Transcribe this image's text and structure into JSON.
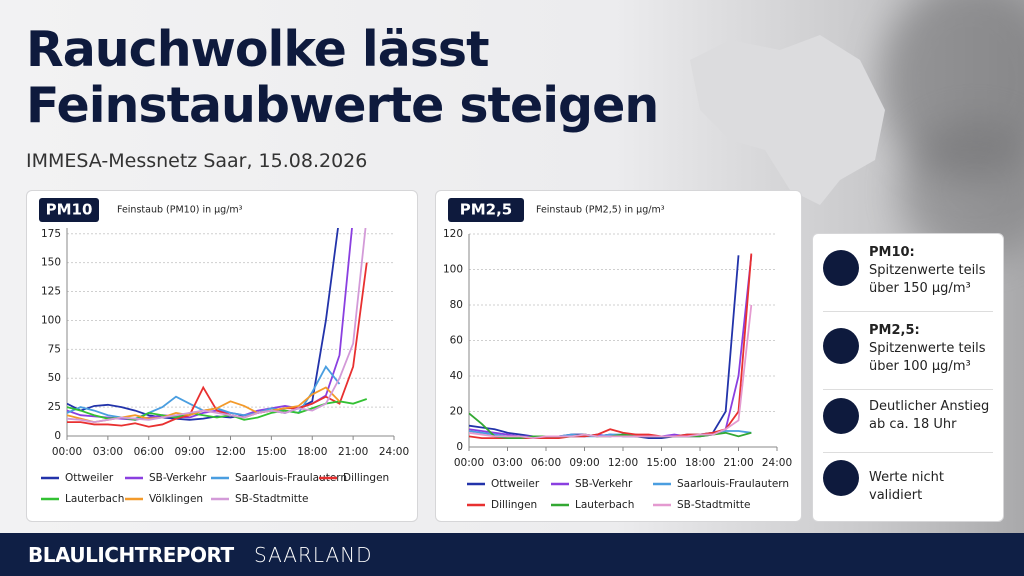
{
  "header": {
    "title_lines": [
      "Rauchwolke lässt",
      "Feinstaubwerte steigen"
    ],
    "subtitle": "IMMESA-Messnetz Saar, 15.08.2026"
  },
  "chart_data": [
    {
      "type": "line",
      "title": "PM10",
      "subtitle": "Feinstaub (PM10) in µg/m³",
      "x": [
        0,
        1,
        2,
        3,
        4,
        5,
        6,
        7,
        8,
        9,
        10,
        11,
        12,
        13,
        14,
        15,
        16,
        17,
        18,
        19,
        20,
        21,
        22
      ],
      "xlim": [
        0,
        24
      ],
      "xticks": [
        {
          "value": 0,
          "label": "00:00"
        },
        {
          "value": 3,
          "label": "03:00"
        },
        {
          "value": 6,
          "label": "06:00"
        },
        {
          "value": 9,
          "label": "09:00"
        },
        {
          "value": 12,
          "label": "12:00"
        },
        {
          "value": 15,
          "label": "15:00"
        },
        {
          "value": 18,
          "label": "18:00"
        },
        {
          "value": 21,
          "label": "21:00"
        },
        {
          "value": 24,
          "label": "24:00"
        }
      ],
      "ylim": [
        0,
        180
      ],
      "yticks": [
        0,
        25,
        50,
        75,
        100,
        125,
        150,
        175
      ],
      "grid": true,
      "series": [
        {
          "name": "Ottweiler",
          "color": "#2233aa",
          "values": [
            28,
            22,
            26,
            27,
            25,
            22,
            18,
            16,
            15,
            14,
            15,
            17,
            16,
            18,
            20,
            22,
            20,
            24,
            30,
            100,
            190,
            null,
            null
          ]
        },
        {
          "name": "SB-Verkehr",
          "color": "#8a3fe0",
          "values": [
            22,
            18,
            17,
            16,
            15,
            14,
            16,
            18,
            17,
            16,
            20,
            22,
            20,
            18,
            22,
            24,
            26,
            24,
            28,
            35,
            70,
            190,
            null
          ]
        },
        {
          "name": "Saarlouis-Fraulautern",
          "color": "#4a9ee0",
          "values": [
            20,
            25,
            22,
            18,
            16,
            15,
            20,
            25,
            34,
            28,
            22,
            24,
            20,
            18,
            20,
            24,
            22,
            20,
            38,
            60,
            45,
            null,
            null
          ]
        },
        {
          "name": "Dillingen",
          "color": "#e83030",
          "values": [
            12,
            12,
            10,
            10,
            9,
            11,
            8,
            10,
            15,
            18,
            42,
            22,
            18,
            16,
            20,
            22,
            24,
            24,
            28,
            34,
            28,
            60,
            150
          ]
        },
        {
          "name": "Lauterbach",
          "color": "#33c133",
          "values": [
            25,
            22,
            18,
            15,
            16,
            14,
            20,
            18,
            16,
            20,
            18,
            16,
            18,
            14,
            16,
            20,
            22,
            20,
            24,
            28,
            30,
            28,
            32
          ]
        },
        {
          "name": "Völklingen",
          "color": "#f39a2a",
          "values": [
            18,
            15,
            12,
            14,
            16,
            18,
            15,
            16,
            20,
            18,
            22,
            24,
            30,
            26,
            20,
            22,
            24,
            26,
            36,
            42,
            30,
            null,
            null
          ]
        },
        {
          "name": "SB-Stadtmitte",
          "color": "#d39ad8",
          "values": [
            15,
            14,
            12,
            14,
            16,
            15,
            14,
            16,
            18,
            20,
            22,
            20,
            18,
            16,
            20,
            22,
            20,
            24,
            22,
            28,
            50,
            80,
            190
          ]
        }
      ]
    },
    {
      "type": "line",
      "title": "PM2,5",
      "subtitle": "Feinstaub (PM2,5) in µg/m³",
      "x": [
        0,
        1,
        2,
        3,
        4,
        5,
        6,
        7,
        8,
        9,
        10,
        11,
        12,
        13,
        14,
        15,
        16,
        17,
        18,
        19,
        20,
        21,
        22
      ],
      "xlim": [
        0,
        24
      ],
      "xticks": [
        {
          "value": 0,
          "label": "00:00"
        },
        {
          "value": 3,
          "label": "03:00"
        },
        {
          "value": 6,
          "label": "06:00"
        },
        {
          "value": 9,
          "label": "09:00"
        },
        {
          "value": 12,
          "label": "12:00"
        },
        {
          "value": 15,
          "label": "15:00"
        },
        {
          "value": 18,
          "label": "18:00"
        },
        {
          "value": 21,
          "label": "21:00"
        },
        {
          "value": 24,
          "label": "24:00"
        }
      ],
      "ylim": [
        0,
        120
      ],
      "yticks": [
        0,
        20,
        40,
        60,
        80,
        100,
        120
      ],
      "grid": true,
      "series": [
        {
          "name": "Ottweiler",
          "color": "#2233aa",
          "values": [
            12,
            11,
            10,
            8,
            7,
            6,
            6,
            6,
            7,
            7,
            6,
            7,
            6,
            6,
            5,
            5,
            6,
            6,
            7,
            8,
            20,
            108,
            null
          ]
        },
        {
          "name": "SB-Verkehr",
          "color": "#8a3fe0",
          "values": [
            10,
            9,
            8,
            7,
            6,
            6,
            5,
            6,
            6,
            6,
            7,
            6,
            7,
            6,
            6,
            6,
            7,
            6,
            6,
            7,
            10,
            40,
            108
          ]
        },
        {
          "name": "Saarlouis-Fraulautern",
          "color": "#4a9ee0",
          "values": [
            9,
            8,
            7,
            6,
            6,
            5,
            6,
            6,
            7,
            6,
            6,
            7,
            7,
            7,
            6,
            6,
            6,
            7,
            7,
            8,
            9,
            9,
            8
          ]
        },
        {
          "name": "Dillingen",
          "color": "#e83030",
          "values": [
            6,
            5,
            5,
            5,
            5,
            5,
            5,
            5,
            6,
            6,
            7,
            10,
            8,
            7,
            7,
            6,
            6,
            7,
            7,
            8,
            10,
            20,
            109
          ]
        },
        {
          "name": "Lauterbach",
          "color": "#33a833",
          "values": [
            19,
            13,
            6,
            5,
            5,
            6,
            6,
            6,
            6,
            7,
            6,
            6,
            7,
            6,
            6,
            6,
            6,
            6,
            6,
            7,
            8,
            6,
            8
          ]
        },
        {
          "name": "SB-Stadtmitte",
          "color": "#e49ad0",
          "values": [
            8,
            7,
            6,
            6,
            6,
            5,
            6,
            6,
            6,
            7,
            6,
            6,
            6,
            6,
            6,
            6,
            6,
            6,
            7,
            7,
            10,
            15,
            80
          ]
        }
      ]
    }
  ],
  "info": {
    "items": [
      {
        "title": "PM10:",
        "lines": [
          "Spitzenwerte teils",
          "über 150 µg/m³"
        ]
      },
      {
        "title": "PM2,5:",
        "lines": [
          "Spitzenwerte teils",
          "über 100 µg/m³"
        ]
      },
      {
        "lines": [
          "Deutlicher Anstieg",
          "ab ca. 18 Uhr"
        ]
      },
      {
        "lines": [
          "Werte nicht validiert"
        ]
      }
    ]
  },
  "footer": {
    "brand": "BLAULICHTREPORT",
    "region": "SAARLAND"
  }
}
